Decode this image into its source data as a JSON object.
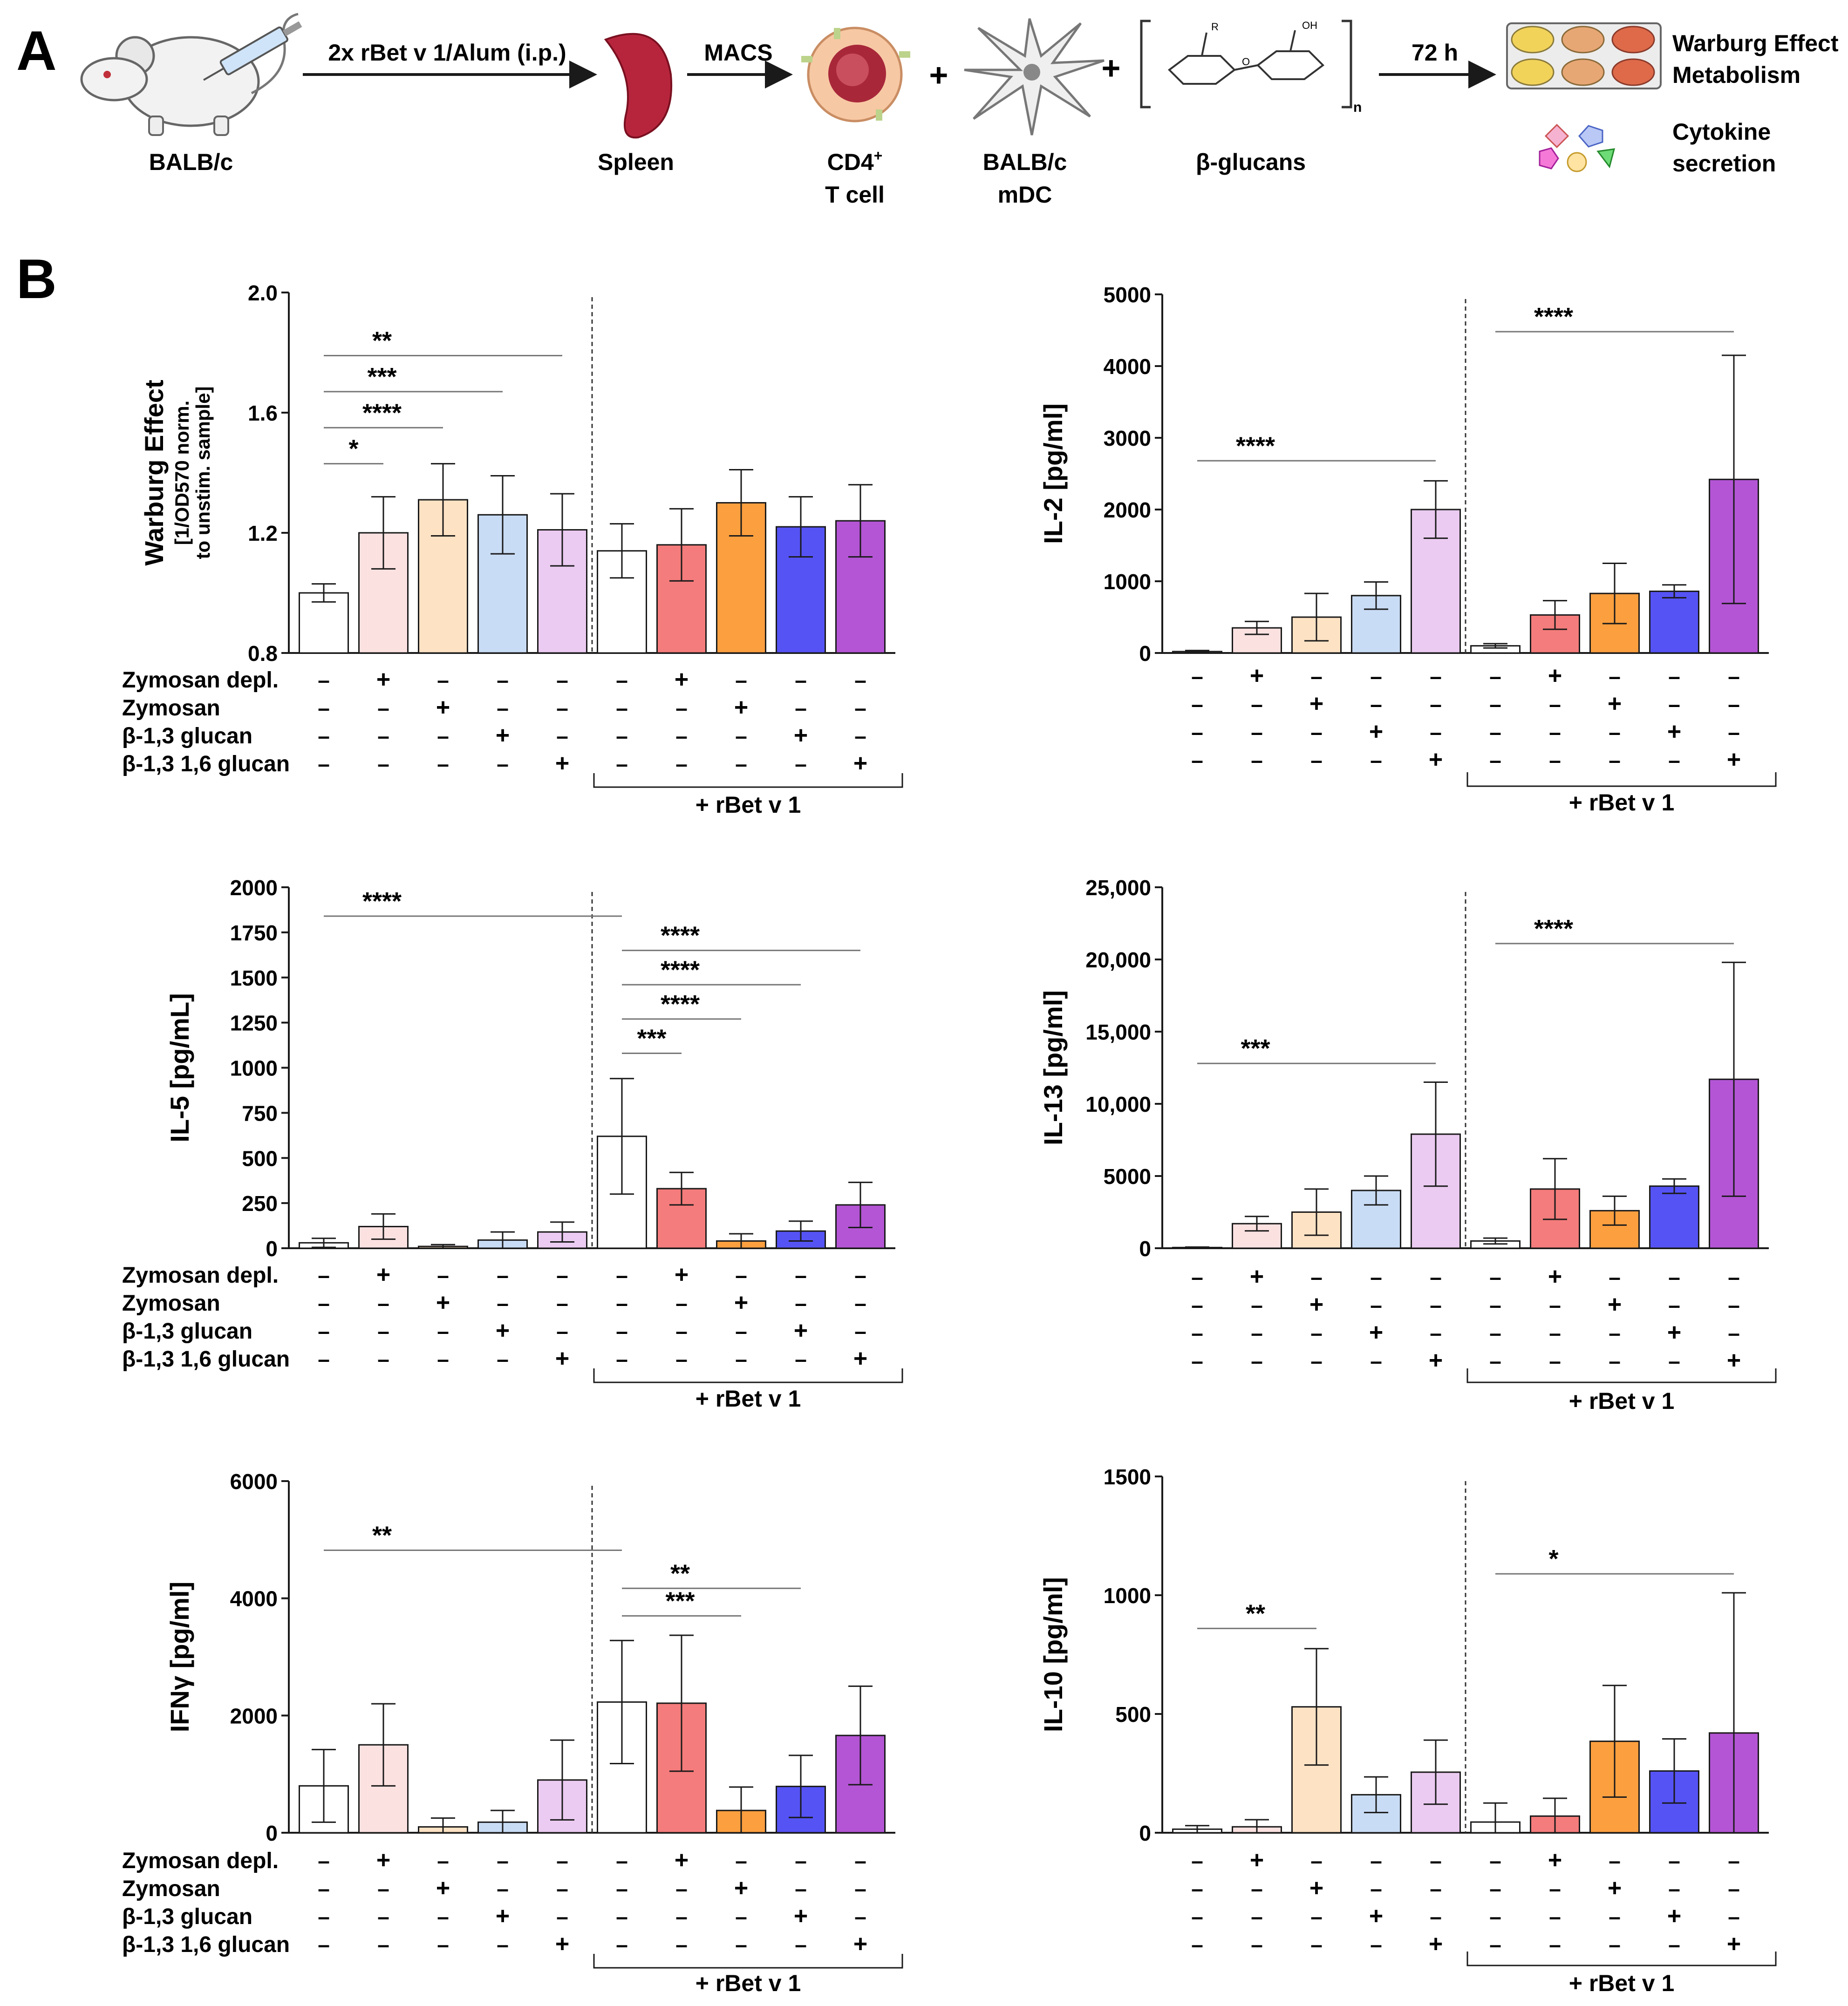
{
  "panel_a": {
    "label": "A",
    "mouse_label": "BALB/c",
    "arrow1_label": "2x rBet v 1/Alum (i.p.)",
    "spleen_label": "Spleen",
    "arrow2_label": "MACS",
    "tcell_label_line1": "CD4",
    "tcell_label_sup": "+",
    "tcell_label_line2": "T cell",
    "plus1": "+",
    "mdc_label_line1": "BALB/c",
    "mdc_label_line2": "mDC",
    "plus2": "+",
    "glucan_label": "β-glucans",
    "glucan_n": "n",
    "glucan_oh": "OH",
    "glucan_r": "R",
    "glucan_o": "O",
    "arrow3_label": "72 h",
    "readout1_line1": "Warburg Effect",
    "readout1_line2": "Metabolism",
    "readout2_line1": "Cytokine",
    "readout2_line2": "secretion"
  },
  "panel_b": {
    "label": "B",
    "row_labels": [
      "Zymosan depl.",
      "Zymosan",
      "β-1,3 glucan",
      "β-1,3 1,6 glucan"
    ],
    "bracket_label": "+ rBet v 1",
    "plus": "+",
    "minus": "–"
  },
  "colors": {
    "fill": [
      "#ffffff",
      "#fce1e1",
      "#fde2c4",
      "#c9dcf5",
      "#ebcbf1",
      "#ffffff",
      "#f57c7c",
      "#fb9f3f",
      "#5553f4",
      "#b455d5"
    ],
    "stroke": "#1a1a1a"
  },
  "chart_data": [
    {
      "id": "warburg",
      "type": "bar",
      "ylabel": "Warburg Effect",
      "ylabel_sub1": "[1/OD570 norm.",
      "ylabel_sub2": "to unstim. sample]",
      "ylim": [
        0.8,
        2.0
      ],
      "ticks": [
        0.8,
        1.2,
        1.6,
        2.0
      ],
      "tick_labels": [
        "0.8",
        "1.2",
        "1.6",
        "2.0"
      ],
      "values": [
        1.0,
        1.2,
        1.31,
        1.26,
        1.21,
        1.14,
        1.16,
        1.3,
        1.22,
        1.24
      ],
      "errors": [
        0.03,
        0.12,
        0.12,
        0.13,
        0.12,
        0.09,
        0.12,
        0.11,
        0.1,
        0.12
      ],
      "significance": [
        {
          "from": 0,
          "to": 1,
          "label": "*",
          "y": 1.43
        },
        {
          "from": 0,
          "to": 2,
          "label": "****",
          "y": 1.55
        },
        {
          "from": 0,
          "to": 3,
          "label": "***",
          "y": 1.67
        },
        {
          "from": 0,
          "to": 4,
          "label": "**",
          "y": 1.79
        }
      ]
    },
    {
      "id": "il2",
      "type": "bar",
      "ylabel": "IL-2 [pg/ml]",
      "ylim": [
        0,
        5000
      ],
      "ticks": [
        0,
        1000,
        2000,
        3000,
        4000,
        5000
      ],
      "tick_labels": [
        "0",
        "1000",
        "2000",
        "3000",
        "4000",
        "5000"
      ],
      "values": [
        20,
        350,
        500,
        800,
        2000,
        100,
        530,
        830,
        860,
        2420
      ],
      "errors": [
        15,
        90,
        330,
        190,
        400,
        30,
        200,
        420,
        90,
        1730
      ],
      "significance": [
        {
          "from": 0,
          "to": 4,
          "label": "****",
          "y": 2680
        },
        {
          "from": 5,
          "to": 9,
          "label": "****",
          "y": 4480
        }
      ]
    },
    {
      "id": "il5",
      "type": "bar",
      "ylabel": "IL-5 [pg/mL]",
      "ylim": [
        0,
        2000
      ],
      "ticks": [
        0,
        250,
        500,
        750,
        1000,
        1250,
        1500,
        1750,
        2000
      ],
      "tick_labels": [
        "0",
        "250",
        "500",
        "750",
        "1000",
        "1250",
        "1500",
        "1750",
        "2000"
      ],
      "values": [
        30,
        120,
        10,
        45,
        90,
        620,
        330,
        40,
        95,
        240
      ],
      "errors": [
        25,
        70,
        10,
        45,
        55,
        320,
        90,
        40,
        55,
        125
      ],
      "significance": [
        {
          "from": 5,
          "to": 6,
          "label": "***",
          "y": 1080
        },
        {
          "from": 5,
          "to": 7,
          "label": "****",
          "y": 1270
        },
        {
          "from": 5,
          "to": 8,
          "label": "****",
          "y": 1460
        },
        {
          "from": 5,
          "to": 9,
          "label": "****",
          "y": 1650
        },
        {
          "from": 0,
          "to": 5,
          "label": "****",
          "y": 1840
        }
      ]
    },
    {
      "id": "il13",
      "type": "bar",
      "ylabel": "IL-13 [pg/ml]",
      "ylim": [
        0,
        25000
      ],
      "ticks": [
        0,
        5000,
        10000,
        15000,
        20000,
        25000
      ],
      "tick_labels": [
        "0",
        "5000",
        "10,000",
        "15,000",
        "20,000",
        "25,000"
      ],
      "values": [
        50,
        1700,
        2500,
        4000,
        7900,
        500,
        4100,
        2600,
        4300,
        11700
      ],
      "errors": [
        30,
        500,
        1600,
        1000,
        3600,
        200,
        2100,
        1000,
        500,
        8100
      ],
      "significance": [
        {
          "from": 0,
          "to": 4,
          "label": "***",
          "y": 12800
        },
        {
          "from": 5,
          "to": 9,
          "label": "****",
          "y": 21100
        }
      ]
    },
    {
      "id": "ifng",
      "type": "bar",
      "ylabel": "IFNγ [pg/ml]",
      "ylim": [
        0,
        6000
      ],
      "ticks": [
        0,
        2000,
        4000,
        6000
      ],
      "tick_labels": [
        "0",
        "2000",
        "4000",
        "6000"
      ],
      "values": [
        800,
        1500,
        100,
        180,
        900,
        2230,
        2210,
        380,
        790,
        1660
      ],
      "errors": [
        620,
        700,
        150,
        200,
        680,
        1050,
        1160,
        400,
        530,
        840
      ],
      "significance": [
        {
          "from": 5,
          "to": 7,
          "label": "***",
          "y": 3700
        },
        {
          "from": 5,
          "to": 8,
          "label": "**",
          "y": 4170
        },
        {
          "from": 0,
          "to": 5,
          "label": "**",
          "y": 4820
        }
      ]
    },
    {
      "id": "il10",
      "type": "bar",
      "ylabel": "IL-10 [pg/ml]",
      "ylim": [
        0,
        1500
      ],
      "ticks": [
        0,
        500,
        1000,
        1500
      ],
      "tick_labels": [
        "0",
        "500",
        "1000",
        "1500"
      ],
      "values": [
        15,
        25,
        530,
        160,
        255,
        45,
        70,
        385,
        260,
        420
      ],
      "errors": [
        15,
        30,
        245,
        75,
        135,
        80,
        75,
        235,
        135,
        590
      ],
      "significance": [
        {
          "from": 0,
          "to": 2,
          "label": "**",
          "y": 860
        },
        {
          "from": 5,
          "to": 9,
          "label": "*",
          "y": 1090
        }
      ]
    }
  ]
}
